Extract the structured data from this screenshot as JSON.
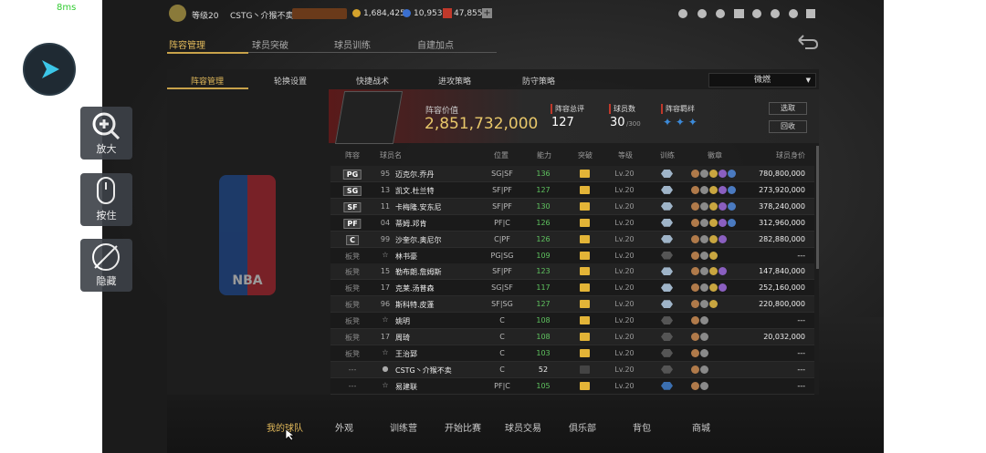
{
  "status": {
    "ping": "8ms"
  },
  "side_buttons": [
    "放大",
    "按住",
    "隐藏"
  ],
  "top_bar": {
    "level": "等级20",
    "player": "CSTG丶介猴不卖",
    "coins": "1,684,425",
    "stars": "10,953",
    "gems": "47,855"
  },
  "main_tabs": [
    "阵容管理",
    "球员突破",
    "球员训练",
    "自建加点"
  ],
  "sub_tabs": [
    "阵容管理",
    "轮换设置",
    "快捷战术",
    "进攻策略",
    "防守策略"
  ],
  "dropdown": "微燃",
  "logo": "NBA",
  "team": {
    "value_label": "阵容价值",
    "value": "2,851,732,000",
    "rating_label": "阵容总评",
    "rating": "127",
    "count_label": "球员数",
    "count": "30",
    "count_max": "/300",
    "bond_label": "阵容羁绊",
    "select": "选取",
    "recycle": "回收"
  },
  "table": {
    "headers": [
      "阵容",
      "球员名",
      "位置",
      "能力",
      "突破",
      "等级",
      "训练",
      "徽章",
      "球员身价"
    ],
    "rows": [
      [
        "PG",
        "95",
        "迈克尔.乔丹",
        "SG|SF",
        "136",
        "Lv.20",
        "780,800,000"
      ],
      [
        "SG",
        "13",
        "凯文.杜兰特",
        "SF|PF",
        "127",
        "Lv.20",
        "273,920,000"
      ],
      [
        "SF",
        "11",
        "卡梅隆.安东尼",
        "SF|PF",
        "130",
        "Lv.20",
        "378,240,000"
      ],
      [
        "PF",
        "04",
        "蒂姆.邓肯",
        "PF|C",
        "126",
        "Lv.20",
        "312,960,000"
      ],
      [
        "C",
        "99",
        "沙奎尔.奥尼尔",
        "C|PF",
        "126",
        "Lv.20",
        "282,880,000"
      ],
      [
        "板凳",
        null,
        "林书豪",
        "PG|SG",
        "109",
        "Lv.20",
        "---"
      ],
      [
        "板凳",
        "15",
        "勒布朗.詹姆斯",
        "SF|PF",
        "123",
        "Lv.20",
        "147,840,000"
      ],
      [
        "板凳",
        "17",
        "克莱.汤普森",
        "SG|SF",
        "117",
        "Lv.20",
        "252,160,000"
      ],
      [
        "板凳",
        "96",
        "斯科特.皮蓬",
        "SF|SG",
        "127",
        "Lv.20",
        "220,800,000"
      ],
      [
        "板凳",
        null,
        "姚明",
        "C",
        "108",
        "Lv.20",
        "---"
      ],
      [
        "板凳",
        "17",
        "周琦",
        "C",
        "108",
        "Lv.20",
        "20,032,000"
      ],
      [
        "板凳",
        null,
        "王治郅",
        "C",
        "103",
        "Lv.20",
        "---"
      ],
      [
        "---",
        null,
        "CSTG丶介猴不卖",
        "C",
        "52",
        "Lv.20",
        "---"
      ],
      [
        "---",
        null,
        "易建联",
        "PF|C",
        "105",
        "Lv.20",
        "---"
      ]
    ]
  },
  "bottom_nav": [
    "我的球队",
    "外观",
    "训练营",
    "开始比赛",
    "球员交易",
    "俱乐部",
    "背包",
    "商城"
  ]
}
